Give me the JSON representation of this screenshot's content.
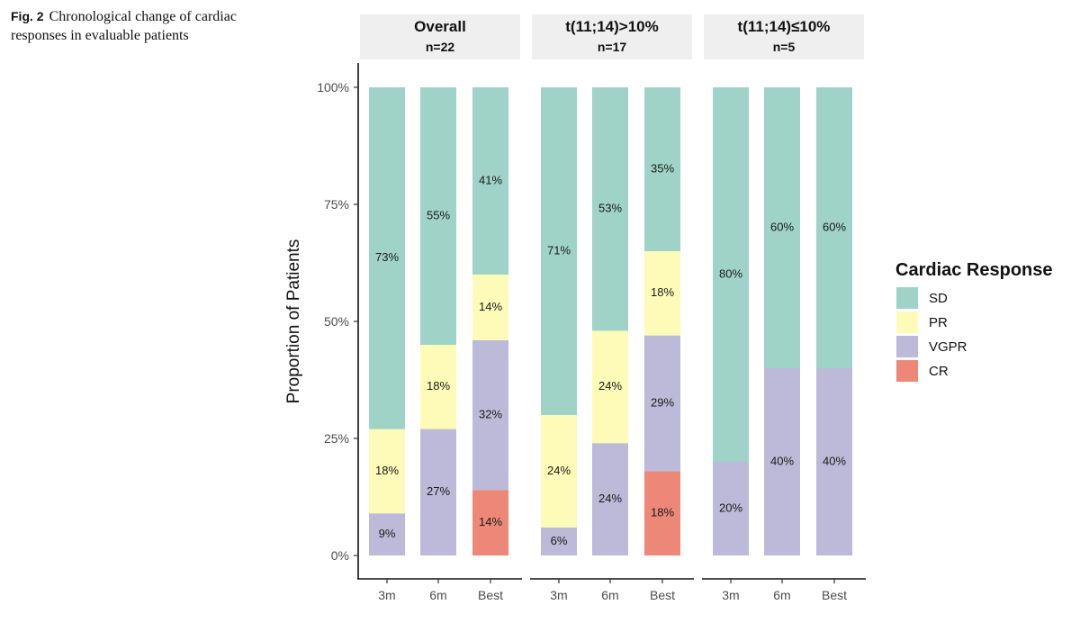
{
  "caption": {
    "fig_label": "Fig. 2",
    "text": "Chronological change of cardiac responses in evaluable patients"
  },
  "chart_data": {
    "type": "bar",
    "stacked": true,
    "ylabel": "Proportion of Patients",
    "xlabel": "",
    "ylim": [
      0,
      100
    ],
    "yticks": [
      "0%",
      "25%",
      "50%",
      "75%",
      "100%"
    ],
    "ytick_values": [
      0,
      25,
      50,
      75,
      100
    ],
    "categories": [
      "3m",
      "6m",
      "Best"
    ],
    "legend": {
      "title": "Cardiac Response",
      "position": "right",
      "entries": [
        {
          "name": "SD",
          "color": "#9fd3c7"
        },
        {
          "name": "PR",
          "color": "#fdfbb7"
        },
        {
          "name": "VGPR",
          "color": "#bcbad8"
        },
        {
          "name": "CR",
          "color": "#ed8878"
        }
      ]
    },
    "stack_order_bottom_to_top": [
      "CR",
      "VGPR",
      "PR",
      "SD"
    ],
    "panels": [
      {
        "title": "Overall",
        "subtitle": "n=22",
        "bars": [
          {
            "category": "3m",
            "SD": 73,
            "PR": 18,
            "VGPR": 9,
            "CR": 0
          },
          {
            "category": "6m",
            "SD": 55,
            "PR": 18,
            "VGPR": 27,
            "CR": 0
          },
          {
            "category": "Best",
            "SD": 41,
            "PR": 14,
            "VGPR": 32,
            "CR": 14
          }
        ]
      },
      {
        "title": "t(11;14)>10%",
        "subtitle": "n=17",
        "bars": [
          {
            "category": "3m",
            "SD": 71,
            "PR": 24,
            "VGPR": 6,
            "CR": 0
          },
          {
            "category": "6m",
            "SD": 53,
            "PR": 24,
            "VGPR": 24,
            "CR": 0
          },
          {
            "category": "Best",
            "SD": 35,
            "PR": 18,
            "VGPR": 29,
            "CR": 18
          }
        ]
      },
      {
        "title": "t(11;14)≤10%",
        "subtitle": "n=5",
        "bars": [
          {
            "category": "3m",
            "SD": 80,
            "PR": 0,
            "VGPR": 20,
            "CR": 0
          },
          {
            "category": "6m",
            "SD": 60,
            "PR": 0,
            "VGPR": 40,
            "CR": 0
          },
          {
            "category": "Best",
            "SD": 60,
            "PR": 0,
            "VGPR": 40,
            "CR": 0
          }
        ]
      }
    ]
  }
}
